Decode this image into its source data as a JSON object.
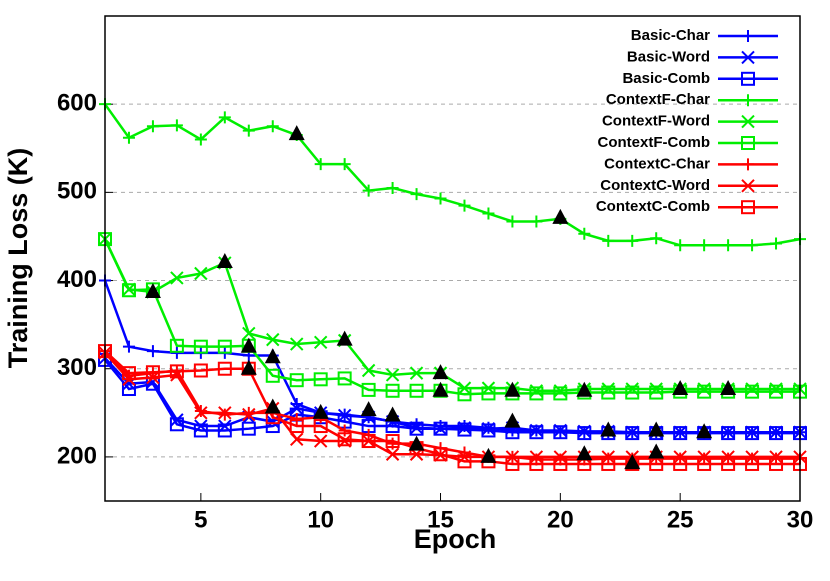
{
  "chart_data": {
    "type": "line",
    "xlabel": "Epoch",
    "ylabel": "Training Loss (K)",
    "x": [
      1,
      2,
      3,
      4,
      5,
      6,
      7,
      8,
      9,
      10,
      11,
      12,
      13,
      14,
      15,
      16,
      17,
      18,
      19,
      20,
      21,
      22,
      23,
      24,
      25,
      26,
      27,
      28,
      29,
      30
    ],
    "xlim": [
      1,
      30
    ],
    "xticks": [
      5,
      10,
      15,
      20,
      25,
      30
    ],
    "ylim": [
      150,
      700
    ],
    "yticks": [
      200,
      300,
      400,
      500,
      600
    ],
    "grid": true,
    "legend": "top-right",
    "series": [
      {
        "name": "Basic-Char",
        "color": "#0000ff",
        "marker": "plus",
        "values": [
          400,
          325,
          320,
          318,
          318,
          318,
          315,
          315,
          260,
          250,
          248,
          245,
          240,
          237,
          235,
          235,
          233,
          230,
          230,
          228,
          228,
          228,
          228,
          228,
          228,
          228,
          228,
          228,
          228,
          228
        ]
      },
      {
        "name": "Basic-Word",
        "color": "#0000ff",
        "marker": "cross",
        "values": [
          312,
          283,
          285,
          242,
          235,
          235,
          245,
          240,
          255,
          250,
          247,
          245,
          240,
          233,
          232,
          233,
          232,
          233,
          230,
          230,
          229,
          229,
          228,
          228,
          228,
          228,
          228,
          228,
          228,
          228
        ]
      },
      {
        "name": "Basic-Comb",
        "color": "#0000ff",
        "marker": "square",
        "values": [
          310,
          277,
          283,
          237,
          230,
          230,
          232,
          235,
          248,
          245,
          240,
          235,
          235,
          232,
          232,
          231,
          230,
          228,
          228,
          228,
          227,
          227,
          227,
          227,
          227,
          227,
          227,
          227,
          227,
          227
        ]
      },
      {
        "name": "ContextF-Char",
        "color": "#00ee00",
        "marker": "plus",
        "values": [
          600,
          562,
          575,
          576,
          560,
          585,
          570,
          575,
          565,
          532,
          532,
          502,
          505,
          498,
          493,
          485,
          476,
          467,
          467,
          470,
          453,
          445,
          445,
          448,
          440,
          440,
          440,
          440,
          442,
          447
        ]
      },
      {
        "name": "ContextF-Word",
        "color": "#00ee00",
        "marker": "cross",
        "values": [
          447,
          390,
          387,
          403,
          408,
          420,
          340,
          333,
          328,
          330,
          332,
          298,
          293,
          295,
          295,
          278,
          278,
          278,
          275,
          275,
          277,
          277,
          277,
          277,
          277,
          277,
          277,
          277,
          277,
          277
        ]
      },
      {
        "name": "ContextF-Comb",
        "color": "#00ee00",
        "marker": "square",
        "values": [
          447,
          389,
          390,
          326,
          325,
          325,
          326,
          292,
          287,
          288,
          289,
          276,
          275,
          275,
          275,
          271,
          272,
          272,
          272,
          272,
          273,
          273,
          273,
          273,
          274,
          274,
          274,
          274,
          274,
          274
        ]
      },
      {
        "name": "ContextC-Char",
        "color": "#ff0000",
        "marker": "plus",
        "values": [
          320,
          292,
          295,
          298,
          252,
          248,
          250,
          250,
          243,
          245,
          230,
          225,
          215,
          215,
          210,
          205,
          200,
          200,
          197,
          197,
          197,
          198,
          198,
          198,
          198,
          198,
          198,
          198,
          198,
          198
        ]
      },
      {
        "name": "ContextC-Word",
        "color": "#ff0000",
        "marker": "cross",
        "values": [
          318,
          288,
          290,
          293,
          250,
          250,
          248,
          255,
          220,
          218,
          218,
          218,
          203,
          203,
          202,
          200,
          200,
          200,
          200,
          200,
          200,
          200,
          200,
          200,
          200,
          200,
          200,
          200,
          200,
          200
        ]
      },
      {
        "name": "ContextC-Comb",
        "color": "#ff0000",
        "marker": "square",
        "values": [
          320,
          295,
          296,
          297,
          298,
          300,
          300,
          245,
          235,
          235,
          220,
          218,
          218,
          210,
          203,
          195,
          195,
          192,
          192,
          192,
          192,
          192,
          192,
          192,
          192,
          192,
          192,
          192,
          192,
          192
        ]
      }
    ],
    "highlights": {
      "color": "#000000",
      "marker": "triangle",
      "x": [
        3,
        6,
        7,
        7,
        8,
        8,
        9,
        10,
        11,
        12,
        13,
        14,
        15,
        15,
        17,
        18,
        18,
        20,
        21,
        21,
        22,
        23,
        24,
        24,
        25,
        26,
        27
      ],
      "y": [
        387,
        421,
        325,
        300,
        313,
        256,
        566,
        250,
        333,
        253,
        247,
        214,
        295,
        275,
        200,
        275,
        240,
        471,
        275,
        203,
        230,
        193,
        230,
        205,
        277,
        228,
        277
      ]
    }
  }
}
